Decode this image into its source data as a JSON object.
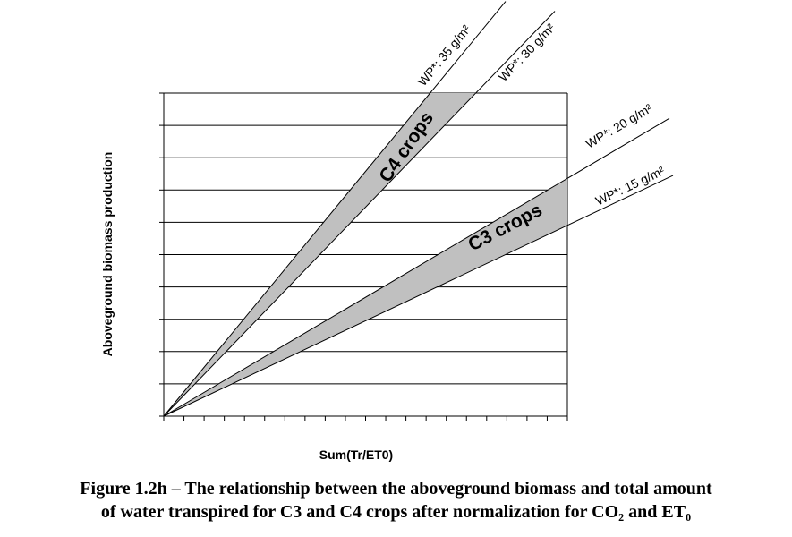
{
  "chart_data": {
    "type": "line",
    "title": "",
    "xlabel": "Sum(Tr/ET0)",
    "ylabel": "Aboveground biomass production",
    "xlim": [
      0,
      100
    ],
    "ylim": [
      0,
      100
    ],
    "grid": {
      "horizontal": true,
      "vertical": false
    },
    "series": [
      {
        "name": "WP*: 35 g/m²",
        "slope": 35,
        "color": "#000000"
      },
      {
        "name": "WP*: 30 g/m²",
        "slope": 30,
        "color": "#000000"
      },
      {
        "name": "WP*: 20 g/m²",
        "slope": 20,
        "color": "#000000"
      },
      {
        "name": "WP*: 15 g/m²",
        "slope": 15,
        "color": "#000000"
      }
    ],
    "bands": [
      {
        "label": "C4 crops",
        "upper": 35,
        "lower": 30,
        "fill": "#c0c0c0"
      },
      {
        "label": "C3 crops",
        "upper": 20,
        "lower": 15,
        "fill": "#c0c0c0"
      }
    ]
  },
  "caption": {
    "line1": "Figure 1.2h – The relationship between the aboveground biomass and total amount",
    "line2": "of water transpired for C3 and C4 crops after normalization for CO₂ and ET₀"
  }
}
